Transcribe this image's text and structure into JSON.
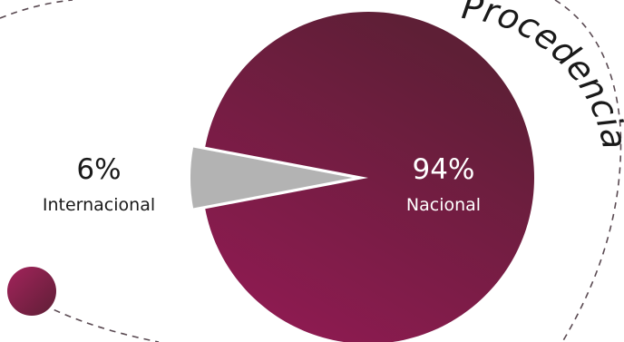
{
  "chart_data": {
    "type": "pie",
    "title": "Procedencia",
    "slices": [
      {
        "label": "Nacional",
        "value": 94,
        "value_text": "94%",
        "color": "#7a1d45"
      },
      {
        "label": "Internacional",
        "value": 6,
        "value_text": "6%",
        "color": "#b3b3b3"
      }
    ]
  },
  "colors": {
    "dashed_line": "#5a4a52",
    "accent_dot": "#8a1f4e",
    "pie_light": "#951a55",
    "pie_dark": "#5e1f36",
    "label_on_slice": "#ffffff",
    "label_outside": "#1a1a1a"
  }
}
